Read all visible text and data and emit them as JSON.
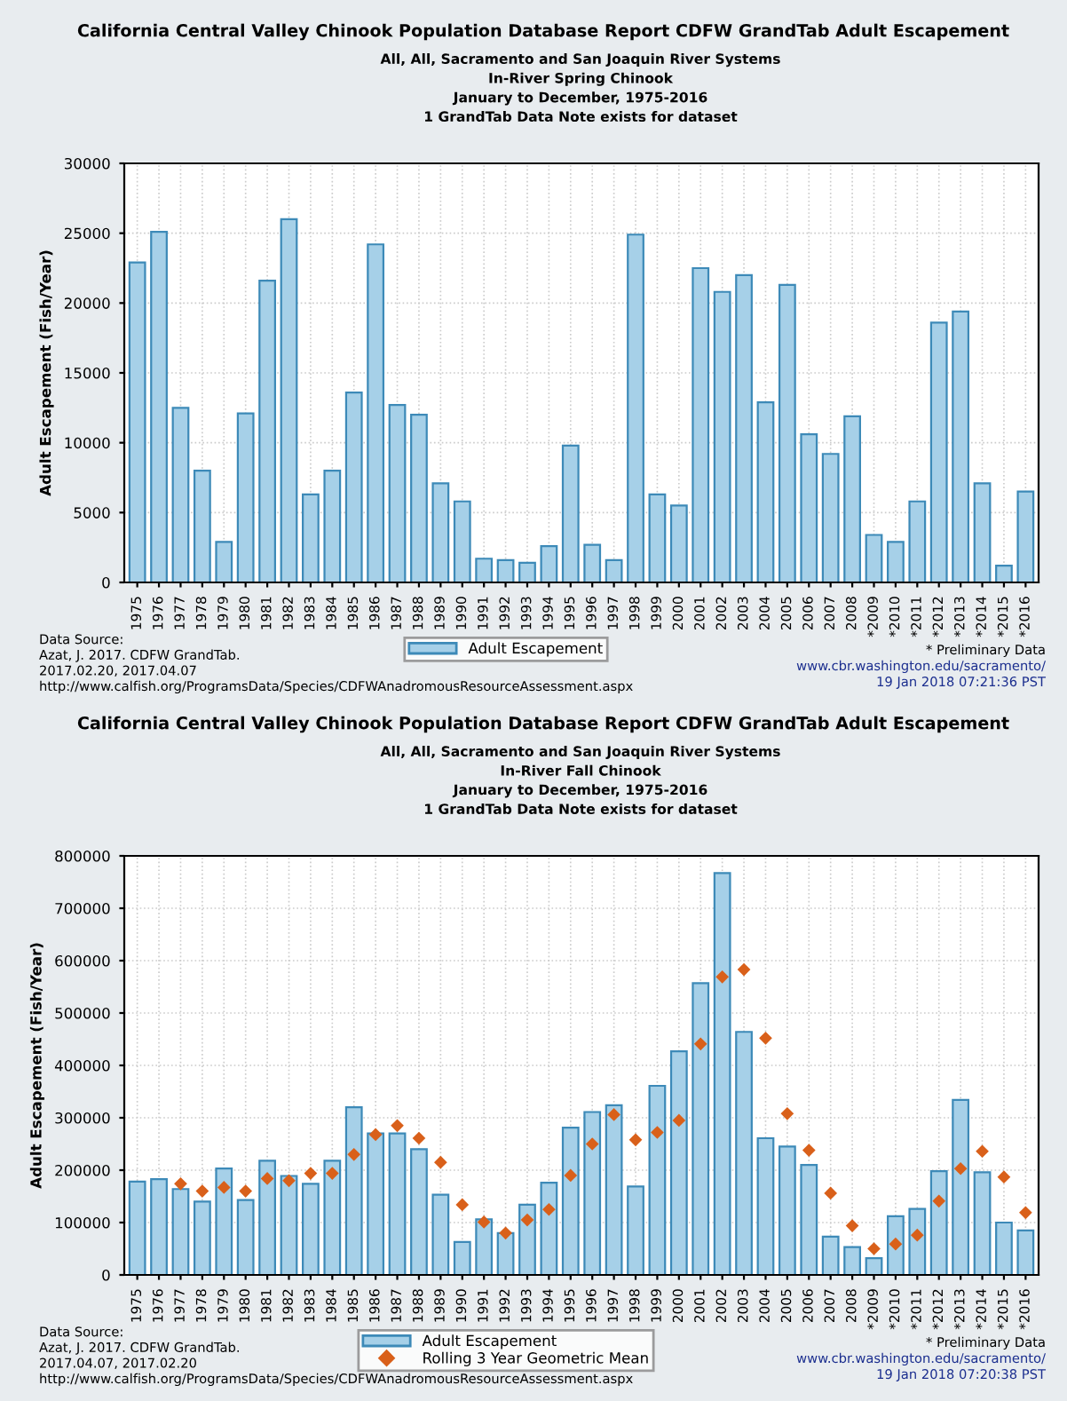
{
  "chart_data": [
    {
      "type": "bar",
      "title": "California Central Valley Chinook Population Database Report CDFW GrandTab Adult Escapement",
      "subtitle": "All, All, Sacramento and San Joaquin River Systems\nIn-River Spring Chinook\nJanuary to December, 1975-2016\n1 GrandTab Data Note exists for dataset",
      "ylabel": "Adult Escapement (Fish/Year)",
      "categories": [
        "1975",
        "1976",
        "1977",
        "1978",
        "1979",
        "1980",
        "1981",
        "1982",
        "1983",
        "1984",
        "1985",
        "1986",
        "1987",
        "1988",
        "1989",
        "1990",
        "1991",
        "1992",
        "1993",
        "1994",
        "1995",
        "1996",
        "1997",
        "1998",
        "1999",
        "2000",
        "2001",
        "2002",
        "2003",
        "2004",
        "2005",
        "2006",
        "2007",
        "2008",
        "*2009",
        "*2010",
        "*2011",
        "*2012",
        "*2013",
        "*2014",
        "*2015",
        "*2016"
      ],
      "series": [
        {
          "name": "Adult Escapement",
          "color": "#a6d0e8",
          "values": [
            22900,
            25100,
            12500,
            8000,
            2900,
            12100,
            21600,
            26000,
            6300,
            8000,
            13600,
            24200,
            12700,
            12000,
            7100,
            5800,
            1700,
            1600,
            1400,
            2600,
            9800,
            2700,
            1600,
            24900,
            6300,
            5500,
            22500,
            20800,
            22000,
            12900,
            21300,
            10600,
            9200,
            11900,
            3400,
            2900,
            5800,
            18600,
            19400,
            7100,
            1200,
            6500
          ]
        }
      ],
      "ylim": [
        0,
        30000
      ],
      "yticks": [
        0,
        5000,
        10000,
        15000,
        20000,
        25000,
        30000
      ],
      "grid": true,
      "legend": "bottom",
      "annotations": [
        "Data Source:\nAzat, J. 2017. CDFW GrandTab.\n2017.02.20, 2017.04.07\nhttp://www.calfish.org/ProgramsData/Species/CDFWAnadromousResourceAssessment.aspx",
        "* Preliminary Data",
        "www.cbr.washington.edu/sacramento/",
        "19 Jan 2018 07:21:36 PST"
      ]
    },
    {
      "type": "bar",
      "title": "California Central Valley Chinook Population Database Report CDFW GrandTab Adult Escapement",
      "subtitle": "All, All, Sacramento and San Joaquin River Systems\nIn-River Fall Chinook\nJanuary to December, 1975-2016\n1 GrandTab Data Note exists for dataset",
      "ylabel": "Adult Escapement (Fish/Year)",
      "categories": [
        "1975",
        "1976",
        "1977",
        "1978",
        "1979",
        "1980",
        "1981",
        "1982",
        "1983",
        "1984",
        "1985",
        "1986",
        "1987",
        "1988",
        "1989",
        "1990",
        "1991",
        "1992",
        "1993",
        "1994",
        "1995",
        "1996",
        "1997",
        "1998",
        "1999",
        "2000",
        "2001",
        "2002",
        "2003",
        "2004",
        "2005",
        "2006",
        "2007",
        "2008",
        "*2009",
        "*2010",
        "*2011",
        "*2012",
        "*2013",
        "*2014",
        "*2015",
        "*2016"
      ],
      "series": [
        {
          "name": "Adult Escapement",
          "color": "#a6d0e8",
          "values": [
            178000,
            183000,
            164000,
            140000,
            203000,
            143000,
            218000,
            189000,
            174000,
            218000,
            320000,
            270000,
            270000,
            240000,
            153000,
            63000,
            106000,
            80000,
            134000,
            176000,
            281000,
            311000,
            324000,
            169000,
            361000,
            427000,
            557000,
            767000,
            464000,
            261000,
            245000,
            210000,
            73000,
            53000,
            32000,
            112000,
            126000,
            198000,
            334000,
            196000,
            100000,
            85000
          ]
        },
        {
          "name": "Rolling 3 Year Geometric Mean",
          "type": "scatter",
          "marker": "diamond",
          "color": "#d9601a",
          "values": [
            null,
            null,
            174000,
            160000,
            167000,
            160000,
            184000,
            180000,
            194000,
            194000,
            230000,
            268000,
            285000,
            261000,
            215000,
            134000,
            101000,
            80000,
            105000,
            125000,
            190000,
            250000,
            306000,
            258000,
            272000,
            295000,
            441000,
            569000,
            583000,
            452000,
            308000,
            238000,
            156000,
            94000,
            50000,
            59000,
            76000,
            141000,
            203000,
            236000,
            187000,
            119000
          ]
        }
      ],
      "ylim": [
        0,
        800000
      ],
      "yticks": [
        0,
        100000,
        200000,
        300000,
        400000,
        500000,
        600000,
        700000,
        800000
      ],
      "grid": true,
      "legend": "bottom",
      "annotations": [
        "Data Source:\nAzat, J. 2017. CDFW GrandTab.\n2017.04.07, 2017.02.20\nhttp://www.calfish.org/ProgramsData/Species/CDFWAnadromousResourceAssessment.aspx",
        "* Preliminary Data",
        "www.cbr.washington.edu/sacramento/",
        "19 Jan 2018 07:20:38 PST"
      ]
    }
  ]
}
